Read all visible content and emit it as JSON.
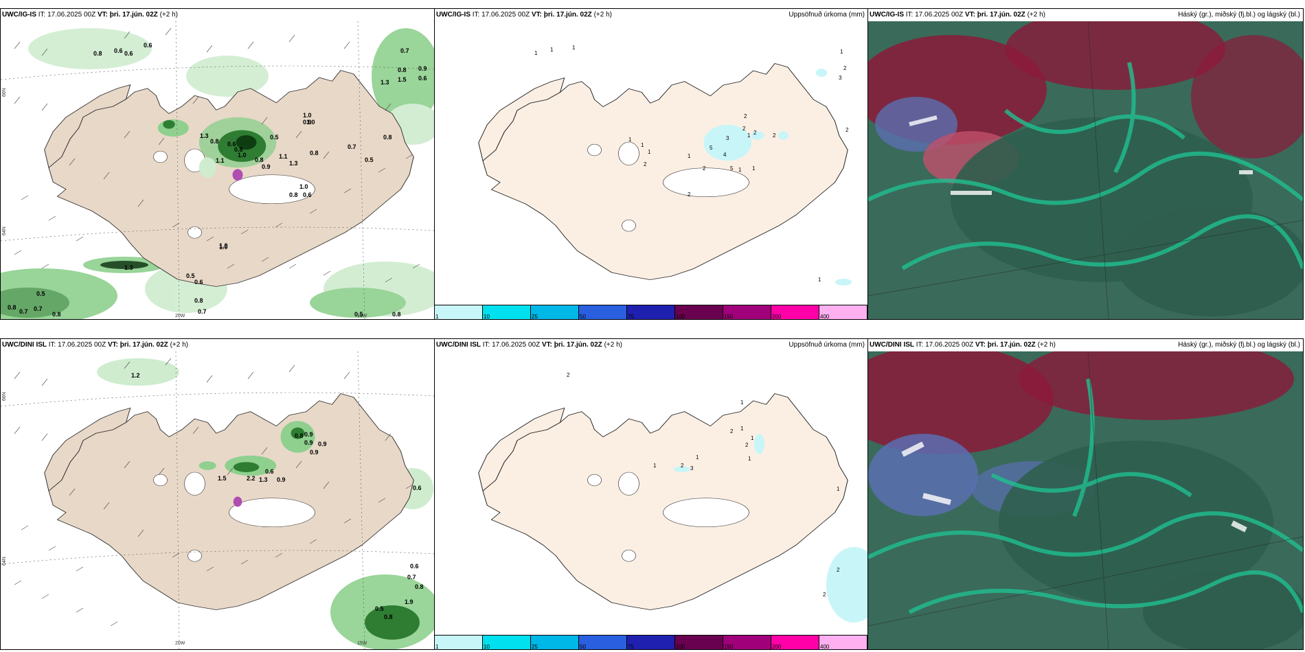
{
  "panels": [
    {
      "model": "UWC/IG-IS",
      "it_label": "IT:",
      "it_value": "17.06.2025 00Z",
      "vt_label": "VT:",
      "vt_value": "þri. 17.jún. 02Z",
      "lead": "(+2 h)",
      "right_title": "",
      "lon_labels": [
        "20W",
        "15W"
      ],
      "lat_labels": [
        "66N",
        "64N"
      ],
      "values": [
        "0.8",
        "0.6",
        "0.6",
        "0.6",
        "0.7",
        "0.8",
        "0.9",
        "0.6",
        "1.3",
        "1.5",
        "1.0",
        "0.9",
        "1.3",
        "0.8",
        "0.6",
        "0.8",
        "1.0",
        "1.1",
        "0.5",
        "0.7",
        "0.5",
        "0.8",
        "0.8",
        "0.9",
        "1.1",
        "1.3",
        "1.0",
        "0.8",
        "0.6",
        "0.8",
        "1.0",
        "0.5",
        "0.6",
        "0.8",
        "0.7",
        "0.8",
        "0.7",
        "0.7",
        "0.8",
        "0.5",
        "0.5",
        "0.8",
        "1.3",
        "1.0",
        "1.0"
      ]
    },
    {
      "model": "UWC/IG-IS",
      "it_label": "IT:",
      "it_value": "17.06.2025 00Z",
      "vt_label": "VT:",
      "vt_value": "þri. 17.jún. 02Z",
      "lead": "(+2 h)",
      "right_title": "Uppsöfnuð úrkoma (mm)",
      "values": [
        "1",
        "1",
        "1",
        "1",
        "2",
        "3",
        "1",
        "1",
        "1",
        "1",
        "2",
        "2",
        "2",
        "3",
        "1",
        "2",
        "5",
        "4",
        "2",
        "1",
        "5",
        "1",
        "2",
        "2",
        "2",
        "1"
      ],
      "colorbar_ticks": [
        "1",
        "10",
        "25",
        "50",
        "75",
        "100",
        "150",
        "200",
        "400"
      ]
    },
    {
      "model": "UWC/IG-IS",
      "it_label": "IT:",
      "it_value": "17.06.2025 00Z",
      "vt_label": "VT:",
      "vt_value": "þri. 17.jún. 02Z",
      "lead": "(+2 h)",
      "right_title": "Háský (gr.), miðský (fj.bl.) og lágský (bl.)"
    },
    {
      "model": "UWC/DINI ISL",
      "it_label": "IT:",
      "it_value": "17.06.2025 00Z",
      "vt_label": "VT:",
      "vt_value": "þri. 17.jún. 02Z",
      "lead": "(+2 h)",
      "right_title": "",
      "lon_labels": [
        "20W",
        "15W"
      ],
      "lat_labels": [
        "66N",
        "64N"
      ],
      "values": [
        "1.2",
        "0.8",
        "0.9",
        "0.9",
        "0.9",
        "0.9",
        "1.5",
        "2.2",
        "0.6",
        "1.3",
        "0.9",
        "0.6",
        "0.6",
        "0.7",
        "0.8",
        "1.9",
        "0.5",
        "0.8"
      ]
    },
    {
      "model": "UWC/DINI ISL",
      "it_label": "IT:",
      "it_value": "17.06.2025 00Z",
      "vt_label": "VT:",
      "vt_value": "þri. 17.jún. 02Z",
      "lead": "(+2 h)",
      "right_title": "Uppsöfnuð úrkoma (mm)",
      "values": [
        "2",
        "1",
        "2",
        "1",
        "2",
        "1",
        "1",
        "2",
        "3",
        "1",
        "1",
        "1",
        "2",
        "2"
      ],
      "colorbar_ticks": [
        "1",
        "10",
        "25",
        "50",
        "75",
        "100",
        "150",
        "200",
        "400"
      ]
    },
    {
      "model": "UWC/DINI ISL",
      "it_label": "IT:",
      "it_value": "17.06.2025 00Z",
      "vt_label": "VT:",
      "vt_value": "þri. 17.jún. 02Z",
      "lead": "(+2 h)",
      "right_title": "Háský (gr.), miðský (fj.bl.) og lágský (bl.)"
    }
  ],
  "colors": {
    "land": "#f2e6dc",
    "land_precip": "#e8d8c8",
    "precip_light": "#cfeccf",
    "precip_mid": "#8fd08f",
    "precip_dark": "#2e7d32",
    "precip_heavy": "#0f3d12",
    "accum_light": "#c8f5f8",
    "cloud_high": "#8b1a3a",
    "cloud_mid": "#5a6fb0",
    "cloud_low": "#2e6b56",
    "cloud_edge": "#20c090",
    "colorbar": [
      "#c8f5f8",
      "#00e0ee",
      "#00b8e8",
      "#2a5fe0",
      "#2020b0",
      "#6a0050",
      "#a0007a",
      "#ff00a8",
      "#ffb0f0"
    ]
  }
}
